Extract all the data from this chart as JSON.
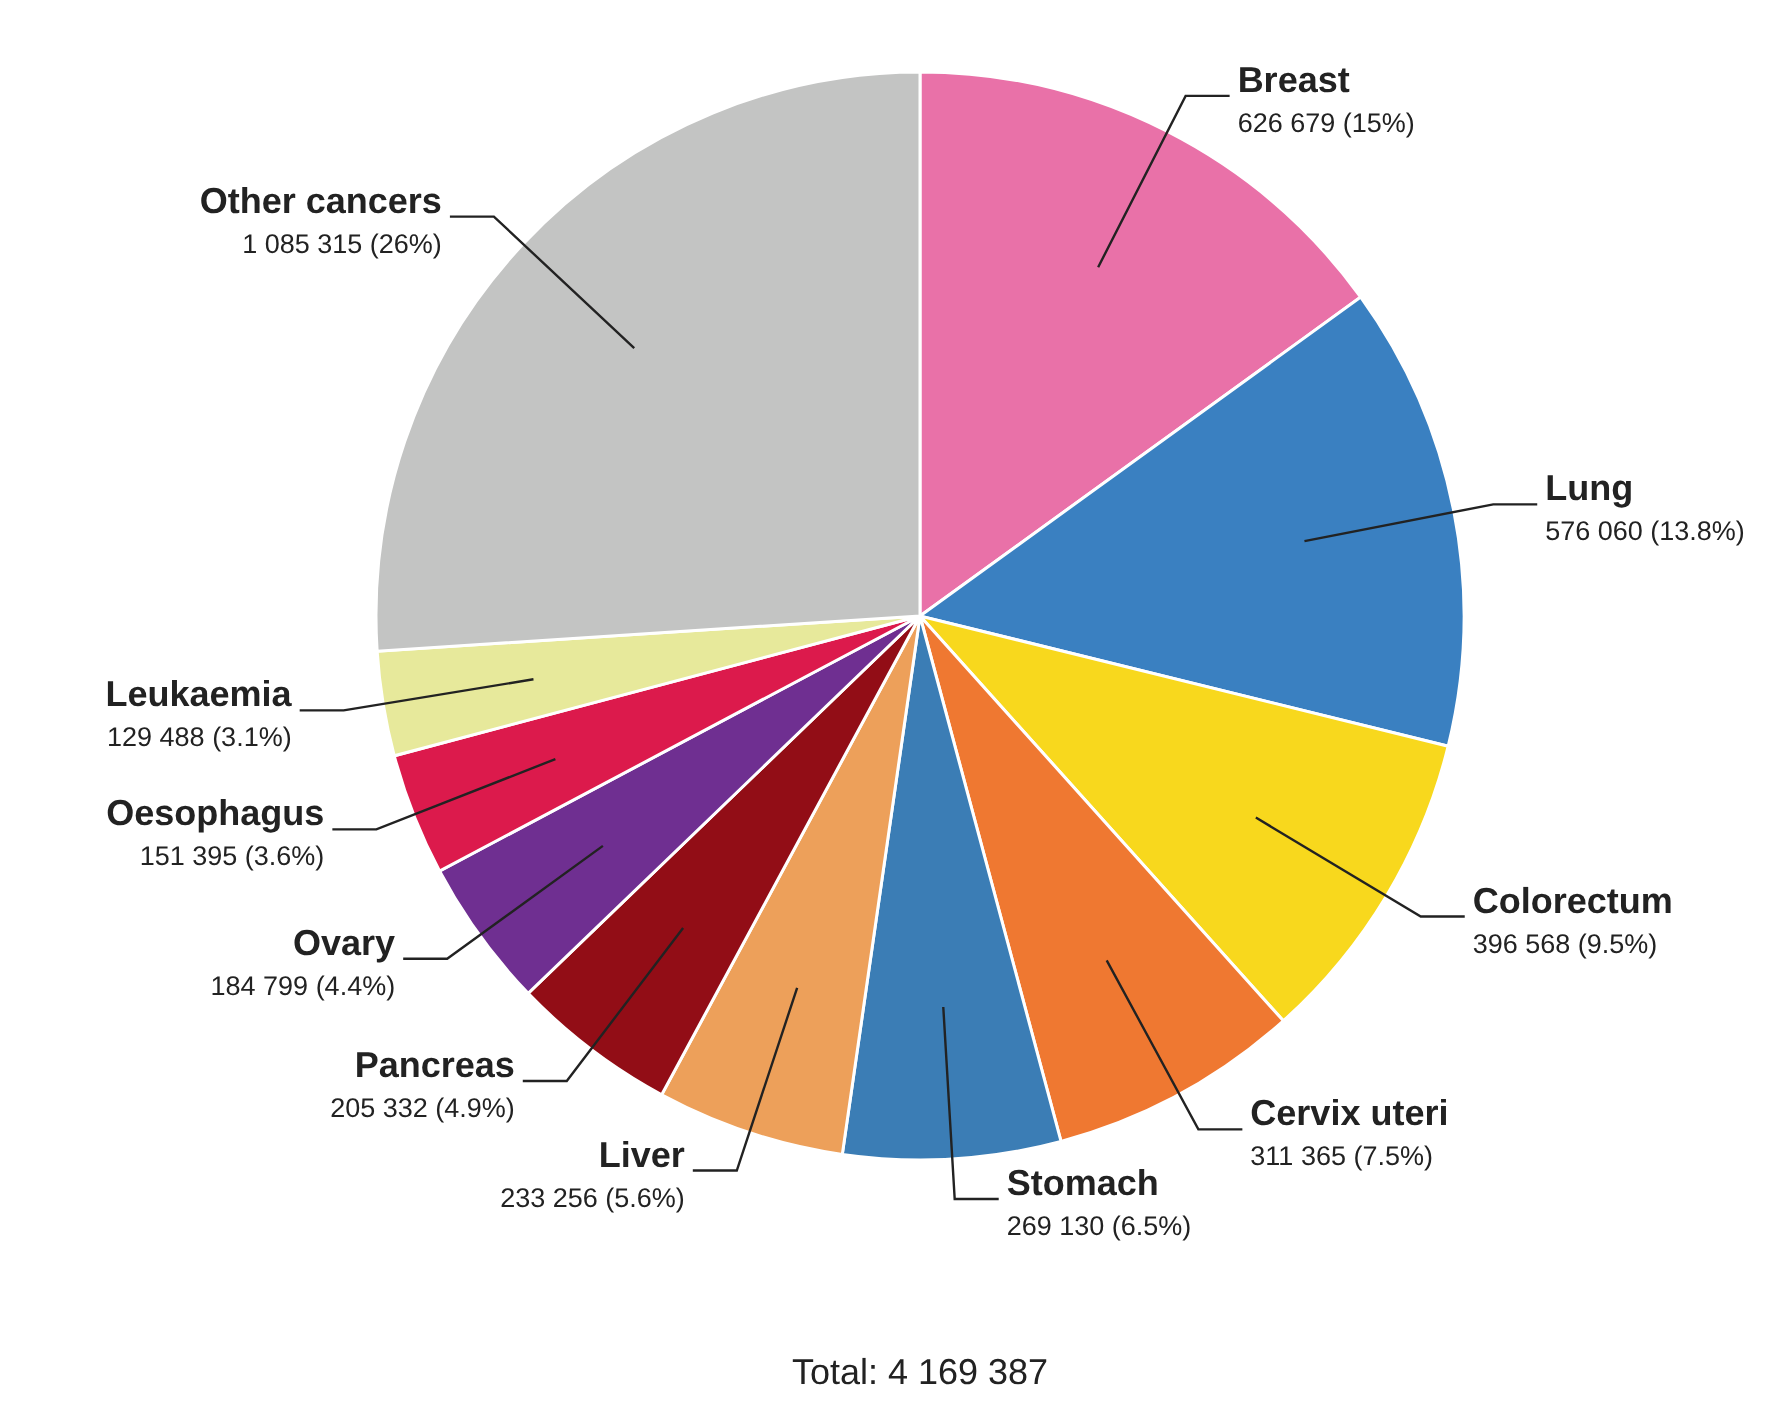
{
  "chart_data": {
    "type": "pie",
    "categories": [
      "Breast",
      "Lung",
      "Colorectum",
      "Cervix uteri",
      "Stomach",
      "Liver",
      "Pancreas",
      "Ovary",
      "Oesophagus",
      "Leukaemia",
      "Other cancers"
    ],
    "values": [
      626679,
      576060,
      396568,
      311365,
      269130,
      233256,
      205332,
      184799,
      151395,
      129488,
      1085315
    ],
    "value_labels": [
      "626 679 (15%)",
      "576 060 (13.8%)",
      "396 568 (9.5%)",
      "311 365 (7.5%)",
      "269 130 (6.5%)",
      "233 256 (5.6%)",
      "205 332 (4.9%)",
      "184 799 (4.4%)",
      "151 395 (3.6%)",
      "129 488 (3.1%)",
      "1 085 315 (26%)"
    ],
    "colors": [
      "#e971a8",
      "#3a80c1",
      "#f8d81d",
      "#ef7831",
      "#3b7db5",
      "#eda05a",
      "#920d16",
      "#6f2f91",
      "#dc1a4c",
      "#e7e99b",
      "#c3c4c3"
    ],
    "annotations": [
      "Total: 4 169 387"
    ]
  }
}
